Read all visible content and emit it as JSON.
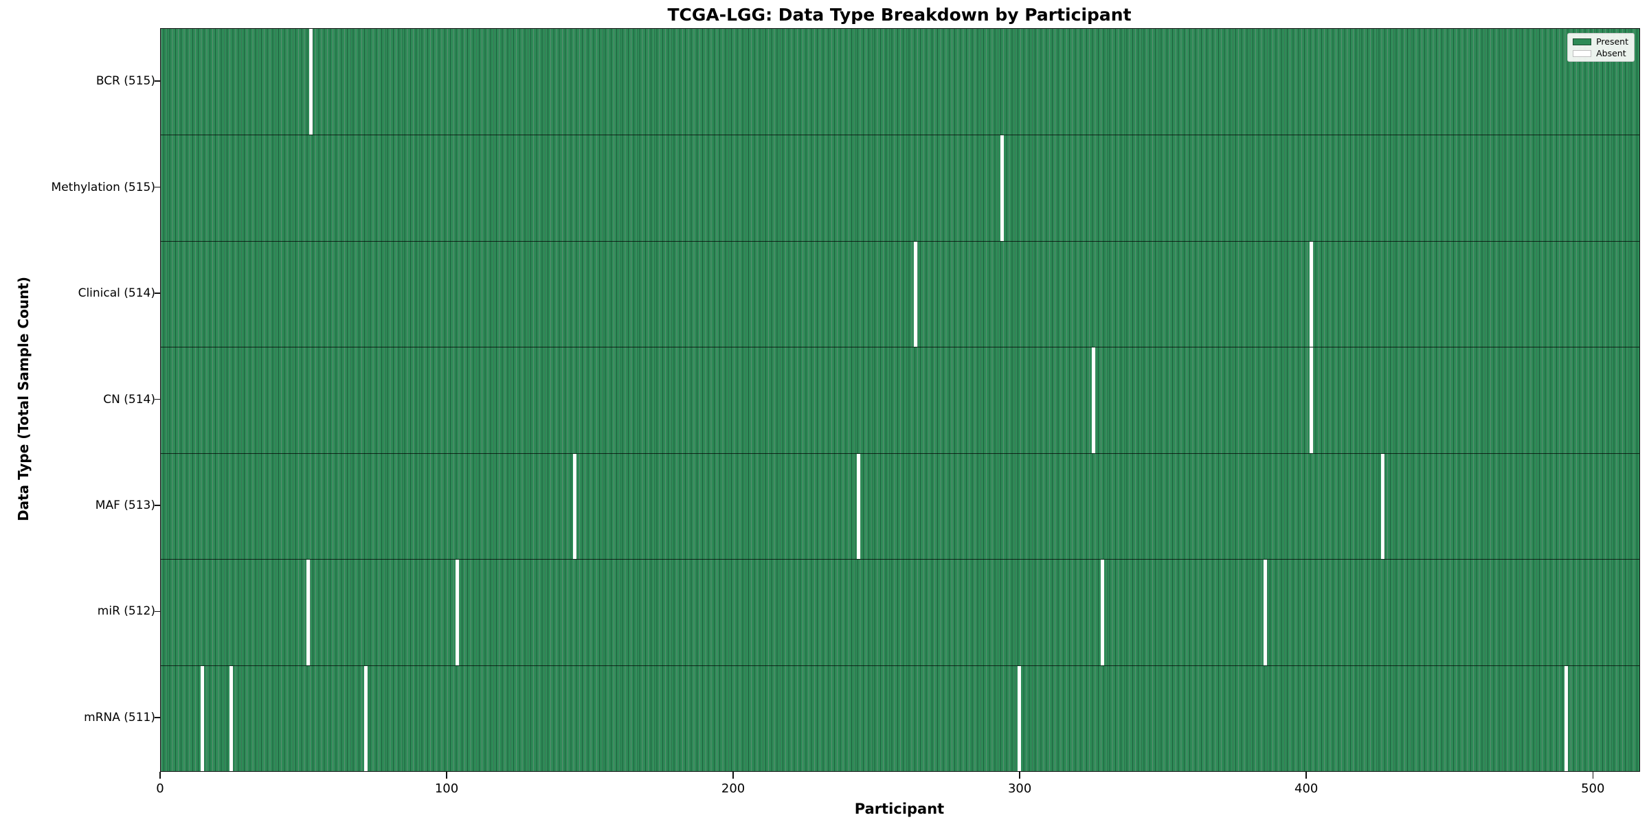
{
  "chart_data": {
    "type": "heatmap",
    "title": "TCGA-LGG: Data Type Breakdown by Participant",
    "xlabel": "Participant",
    "ylabel": "Data Type (Total Sample Count)",
    "x_axis": {
      "ticks": [
        0,
        100,
        200,
        300,
        400,
        500
      ],
      "range": [
        0,
        516
      ]
    },
    "n_participants": 516,
    "grid": false,
    "legend_position": "upper right",
    "legend": [
      {
        "label": "Present",
        "color": "#2e8b57"
      },
      {
        "label": "Absent",
        "color": "#ffffff"
      }
    ],
    "colors": {
      "present": "#2e8b57",
      "bar_edge": "#1e5f3d",
      "absent": "#ffffff"
    },
    "rows": [
      {
        "label": "BCR (515)",
        "name": "BCR",
        "present_count": 515,
        "absent_participants": [
          52
        ]
      },
      {
        "label": "Methylation (515)",
        "name": "Methylation",
        "present_count": 515,
        "absent_participants": [
          293
        ]
      },
      {
        "label": "Clinical (514)",
        "name": "Clinical",
        "present_count": 514,
        "absent_participants": [
          263,
          401
        ]
      },
      {
        "label": "CN (514)",
        "name": "CN",
        "present_count": 514,
        "absent_participants": [
          325,
          401
        ]
      },
      {
        "label": "MAF (513)",
        "name": "MAF",
        "present_count": 513,
        "absent_participants": [
          144,
          243,
          426
        ]
      },
      {
        "label": "miR (512)",
        "name": "miR",
        "present_count": 512,
        "absent_participants": [
          51,
          103,
          328,
          385
        ]
      },
      {
        "label": "mRNA (511)",
        "name": "mRNA",
        "present_count": 511,
        "absent_participants": [
          14,
          24,
          71,
          299,
          490
        ]
      }
    ]
  }
}
